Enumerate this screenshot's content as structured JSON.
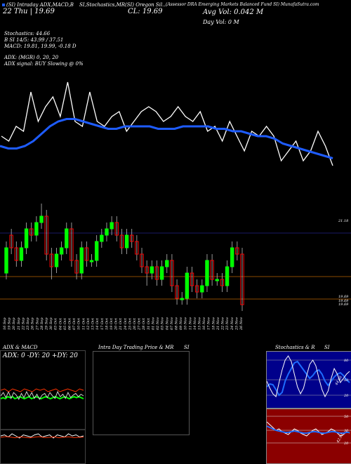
{
  "header": {
    "line1_left": "(SI) Intraday ADX,MACD,B",
    "line1_mid": "SI,Stochastics,MR",
    "line1_ticker": "(SI) Oregon Sil...",
    "line1_right": "(Assessor DRA Emerging Markets Balanced Fund SI) MunafaSutra.com",
    "line2_date": "22 Thu | 19.69",
    "close_label": "CL: 19.69",
    "avg_vol": "Avg Vol: 0.042 M",
    "day_vol": "Day Vol: 0  M",
    "stoch": "Stochastics: 44.66",
    "stoch_b": "B                     SI 14/5: 43.99 / 37.51",
    "macd": "MACD: 19.81, 19.99, -0.18  D",
    "adx": "ADX:                              (MGR) 0,  20,  20",
    "adx_signal": "ADX  signal:                                 BUY Slowing @ 0%"
  },
  "colors": {
    "bull": "#00ff00",
    "bear": "#ff0000",
    "avg_line": "#1e5cff",
    "price_line": "#ffffff",
    "grid": "#8a4a00",
    "top_grid": "#1a1a66",
    "stoch_bg": "#00008b",
    "mrsi_bg": "#8b0000"
  },
  "chart_data": {
    "type": "line",
    "x": [
      "16 Sep",
      "19 Sep",
      "20 Sep",
      "21 Sep",
      "22 Sep",
      "23 Sep",
      "26 Sep",
      "27 Sep",
      "28 Sep",
      "29 Sep",
      "30 Sep",
      "03 Oct",
      "04 Oct",
      "05 Oct",
      "06 Oct",
      "07 Oct",
      "10 Oct",
      "11 Oct",
      "12 Oct",
      "13 Oct",
      "14 Oct",
      "17 Oct",
      "18 Oct",
      "19 Oct",
      "20 Oct",
      "21 Oct",
      "24 Oct",
      "25 Oct",
      "26 Oct",
      "27 Oct",
      "28 Oct",
      "31 Oct",
      "01 Nov",
      "02 Nov",
      "03 Nov",
      "04 Nov",
      "07 Nov",
      "08 Nov",
      "09 Nov",
      "10 Nov",
      "11 Nov",
      "14 Nov",
      "15 Nov",
      "16 Nov",
      "17 Nov",
      "18 Nov",
      "21 Nov",
      "22 Nov",
      "23 Nov",
      "24 Nov",
      "25 Nov",
      "26 Nov"
    ],
    "price_levels": [
      "21.18",
      "19.69",
      "19.69",
      "19.69"
    ],
    "candles": {
      "open": [
        20.2,
        20.8,
        20.6,
        20.4,
        20.6,
        20.9,
        20.8,
        21.0,
        21.1,
        20.5,
        20.3,
        20.5,
        20.6,
        20.9,
        20.4,
        20.2,
        20.6,
        20.4,
        20.4,
        20.7,
        20.8,
        20.9,
        21.0,
        20.8,
        20.6,
        20.8,
        20.7,
        20.5,
        20.3,
        20.2,
        20.3,
        20.1,
        20.3,
        20.4,
        20.0,
        19.8,
        19.8,
        20.2,
        20.0,
        19.9,
        20.0,
        20.4,
        20.1,
        20.1,
        20.0,
        20.3,
        20.6,
        20.5
      ],
      "close": [
        20.6,
        20.6,
        20.4,
        20.6,
        20.9,
        20.8,
        21.0,
        21.1,
        20.5,
        20.3,
        20.5,
        20.6,
        20.9,
        20.4,
        20.2,
        20.6,
        20.4,
        20.4,
        20.7,
        20.8,
        20.9,
        21.0,
        20.8,
        20.6,
        20.8,
        20.7,
        20.5,
        20.3,
        20.2,
        20.3,
        20.1,
        20.3,
        20.4,
        20.0,
        19.8,
        19.8,
        20.2,
        20.0,
        19.9,
        20.0,
        20.4,
        20.1,
        20.1,
        20.0,
        20.3,
        20.6,
        20.5,
        19.7
      ],
      "high": [
        20.7,
        20.9,
        20.7,
        20.7,
        21.0,
        21.0,
        21.1,
        21.3,
        21.2,
        20.6,
        20.6,
        20.7,
        21.0,
        21.0,
        20.5,
        20.7,
        20.7,
        20.5,
        20.8,
        20.9,
        21.0,
        21.1,
        21.1,
        20.9,
        20.9,
        20.9,
        20.8,
        20.6,
        20.4,
        20.4,
        20.4,
        20.4,
        20.5,
        20.5,
        20.1,
        19.9,
        20.3,
        20.3,
        20.1,
        20.1,
        20.5,
        20.5,
        20.2,
        20.2,
        20.4,
        20.7,
        20.7,
        20.6
      ],
      "low": [
        20.1,
        20.5,
        20.3,
        20.3,
        20.5,
        20.7,
        20.7,
        20.9,
        20.4,
        20.1,
        20.2,
        20.4,
        20.5,
        20.3,
        20.1,
        20.1,
        20.3,
        20.3,
        20.3,
        20.6,
        20.7,
        20.8,
        20.7,
        20.5,
        20.5,
        20.6,
        20.4,
        20.2,
        20.0,
        20.1,
        20.0,
        20.0,
        20.2,
        19.9,
        19.7,
        19.7,
        19.7,
        19.9,
        19.8,
        19.8,
        19.9,
        20.0,
        20.0,
        19.9,
        19.9,
        20.2,
        20.4,
        19.6
      ]
    },
    "price_line": [
      20.3,
      20.2,
      20.5,
      20.4,
      21.2,
      20.6,
      20.9,
      21.1,
      20.7,
      21.4,
      20.6,
      20.5,
      21.2,
      20.6,
      20.5,
      20.7,
      20.8,
      20.4,
      20.6,
      20.8,
      20.9,
      20.8,
      20.6,
      20.7,
      20.9,
      20.7,
      20.6,
      20.8,
      20.4,
      20.5,
      20.2,
      20.6,
      20.3,
      20.0,
      20.4,
      20.3,
      20.5,
      20.3,
      19.8,
      20.0,
      20.2,
      19.8,
      20.0,
      20.4,
      20.1,
      19.7
    ],
    "avg_line": [
      20.1,
      20.05,
      20.05,
      20.1,
      20.2,
      20.35,
      20.5,
      20.6,
      20.65,
      20.65,
      20.6,
      20.55,
      20.5,
      20.45,
      20.45,
      20.5,
      20.5,
      20.5,
      20.5,
      20.45,
      20.45,
      20.45,
      20.5,
      20.5,
      20.5,
      20.5,
      20.45,
      20.45,
      20.4,
      20.4,
      20.35,
      20.3,
      20.3,
      20.25,
      20.15,
      20.1,
      20.05,
      20.0,
      19.95,
      19.9,
      19.85
    ]
  },
  "panels": {
    "adx_title": "ADX  & MACD",
    "adx_values": "ADX: 0  -DY: 20  +DY: 20",
    "intraday_title": "Intra  Day Trading Price  & MR",
    "intraday_si": "SI",
    "stoch_title": "Stochastics & R",
    "stoch_si": "SI",
    "stoch_levels": [
      "80",
      "50",
      "20"
    ],
    "mrsi_levels": [
      "50",
      "30",
      "20"
    ],
    "stoch_value": "44.66",
    "mrsi_value": "42.92"
  }
}
